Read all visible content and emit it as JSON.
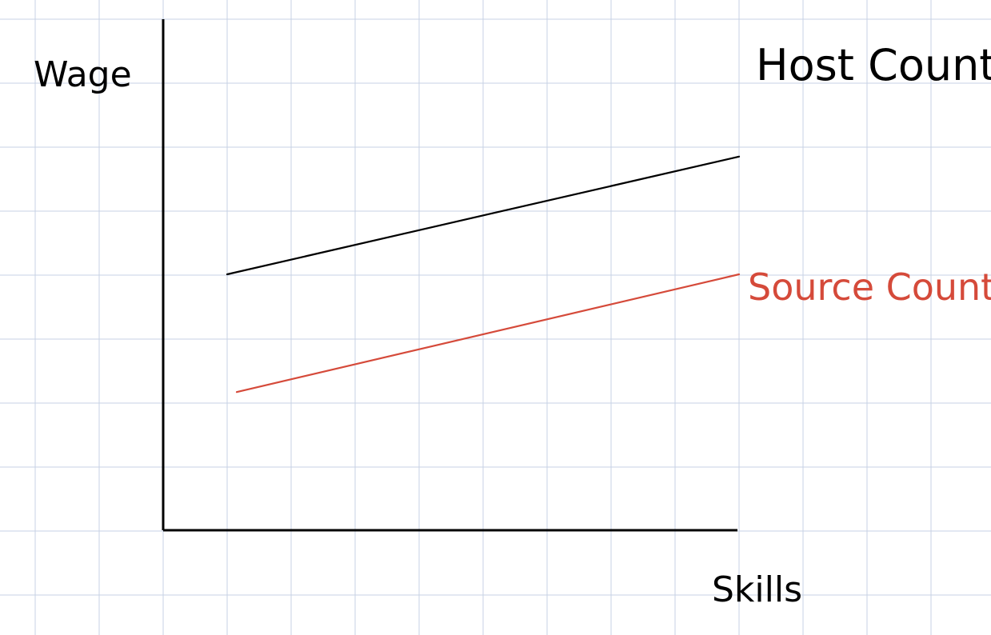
{
  "chart_data": {
    "type": "line",
    "title": "",
    "xlabel": "Skills",
    "ylabel": "Wage",
    "grid": true,
    "axis_ticks": false,
    "x_range": [
      0,
      10
    ],
    "y_range": [
      0,
      10
    ],
    "series": [
      {
        "name": "Host Country",
        "color": "#000000",
        "points": [
          {
            "x": 1,
            "y": 5
          },
          {
            "x": 9,
            "y": 7.3
          }
        ]
      },
      {
        "name": "Source Country",
        "color": "#d54a3a",
        "points": [
          {
            "x": 1.15,
            "y": 2.7
          },
          {
            "x": 9,
            "y": 5
          }
        ]
      }
    ]
  },
  "colors": {
    "grid": "#c7d2e4",
    "axis": "#000000",
    "background": "#ffffff"
  }
}
